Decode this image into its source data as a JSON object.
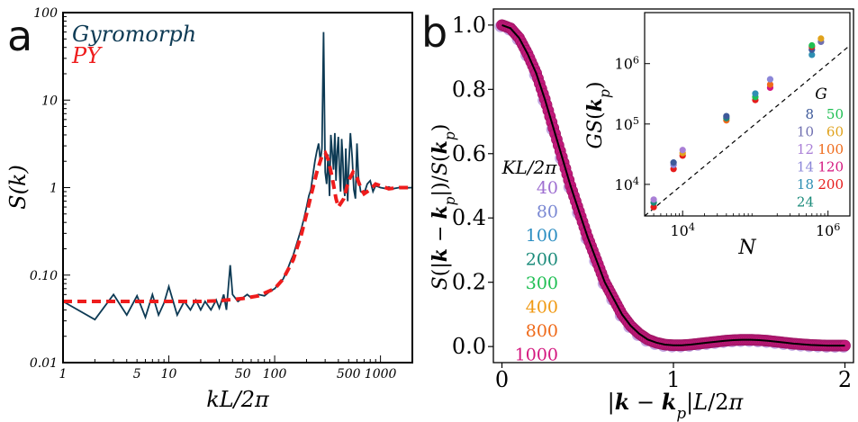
{
  "chart_data": [
    {
      "panel": "a",
      "type": "line",
      "xscale": "log",
      "yscale": "log",
      "xlim": [
        1,
        2000
      ],
      "ylim": [
        0.01,
        100
      ],
      "xlabel": "kL/2π",
      "ylabel": "S(k)",
      "xticks": [
        1,
        5,
        10,
        50,
        100,
        500,
        1000
      ],
      "xtick_labels": [
        "1",
        "5",
        "10",
        "50",
        "100",
        "500",
        "1000"
      ],
      "yticks": [
        0.01,
        0.1,
        1,
        10,
        100
      ],
      "ytick_labels": [
        "0.01",
        "0.10",
        "1",
        "10",
        "100"
      ],
      "legend_position": "top-left",
      "series": [
        {
          "name": "Gyromorph",
          "color": "#0d3a54",
          "style": "solid",
          "x": [
            1,
            2,
            3,
            4,
            5,
            6,
            7,
            8,
            9,
            10,
            12,
            14,
            16,
            18,
            20,
            22,
            25,
            28,
            30,
            33,
            35,
            38,
            40,
            45,
            50,
            55,
            60,
            70,
            80,
            90,
            100,
            110,
            120,
            130,
            140,
            150,
            160,
            170,
            180,
            190,
            200,
            210,
            220,
            230,
            240,
            250,
            260,
            270,
            280,
            290,
            300,
            310,
            320,
            330,
            340,
            350,
            360,
            370,
            380,
            390,
            400,
            410,
            420,
            430,
            440,
            450,
            460,
            470,
            480,
            490,
            500,
            520,
            540,
            560,
            580,
            600,
            620,
            650,
            700,
            750,
            800,
            850,
            900,
            1000,
            1100,
            1200,
            1300,
            1500,
            1700,
            2000
          ],
          "y": [
            0.05,
            0.031,
            0.06,
            0.035,
            0.058,
            0.033,
            0.06,
            0.035,
            0.048,
            0.074,
            0.035,
            0.05,
            0.04,
            0.052,
            0.04,
            0.05,
            0.04,
            0.052,
            0.042,
            0.06,
            0.04,
            0.13,
            0.06,
            0.05,
            0.055,
            0.06,
            0.055,
            0.06,
            0.058,
            0.065,
            0.07,
            0.08,
            0.09,
            0.11,
            0.14,
            0.17,
            0.22,
            0.28,
            0.35,
            0.45,
            0.6,
            0.8,
            0.95,
            1.4,
            2.0,
            2.6,
            3.2,
            2.0,
            2.8,
            60,
            1.5,
            1.1,
            2.4,
            0.8,
            4.0,
            2.5,
            1.6,
            4.2,
            1.2,
            2.6,
            3.8,
            1.5,
            0.9,
            3.6,
            2.2,
            1.0,
            0.8,
            2.8,
            1.3,
            0.7,
            1.6,
            4.2,
            2.2,
            0.95,
            0.75,
            3.2,
            1.3,
            0.9,
            0.85,
            1.1,
            1.2,
            0.9,
            1.05,
            1.0,
            0.98,
            1.02,
            0.97,
            1.0,
            0.99,
            1.0
          ]
        },
        {
          "name": "PY",
          "color": "#ee1c1c",
          "style": "dashed",
          "x": [
            1,
            2,
            3,
            5,
            10,
            20,
            30,
            50,
            70,
            100,
            120,
            150,
            180,
            200,
            220,
            250,
            280,
            300,
            320,
            350,
            380,
            400,
            450,
            500,
            550,
            600,
            650,
            700,
            800,
            900,
            1000,
            1200,
            1500,
            2000
          ],
          "y": [
            0.05,
            0.05,
            0.05,
            0.05,
            0.05,
            0.05,
            0.051,
            0.054,
            0.058,
            0.07,
            0.09,
            0.15,
            0.3,
            0.5,
            0.8,
            1.5,
            2.3,
            2.5,
            2.1,
            1.3,
            0.75,
            0.6,
            0.75,
            1.2,
            1.5,
            1.3,
            1.0,
            0.85,
            0.95,
            1.1,
            1.05,
            0.97,
            1.0,
            1.0
          ]
        }
      ]
    },
    {
      "panel": "b",
      "type": "scatter",
      "xlim": [
        -0.05,
        2.05
      ],
      "ylim": [
        -0.05,
        1.05
      ],
      "xlabel": "|k − k_p|L/2π",
      "ylabel": "S(|k − k_p|)/S(k_p)",
      "xticks": [
        0,
        1,
        2
      ],
      "xtick_labels": [
        "0",
        "1",
        "2"
      ],
      "yticks": [
        0.0,
        0.2,
        0.4,
        0.6,
        0.8,
        1.0
      ],
      "ytick_labels": [
        "0.0",
        "0.2",
        "0.4",
        "0.6",
        "0.8",
        "1.0"
      ],
      "legend_title": "KL/2π",
      "legend_position": "center-left",
      "legend": [
        {
          "label": "40",
          "color": "#9e6fd1"
        },
        {
          "label": "80",
          "color": "#7a88d3"
        },
        {
          "label": "100",
          "color": "#2c8ec2"
        },
        {
          "label": "200",
          "color": "#1a8b7a"
        },
        {
          "label": "300",
          "color": "#1fbf53"
        },
        {
          "label": "400",
          "color": "#f09a14"
        },
        {
          "label": "800",
          "color": "#ef6a1a"
        },
        {
          "label": "1000",
          "color": "#d4177f"
        }
      ],
      "curve_x": [
        0,
        0.05,
        0.1,
        0.15,
        0.2,
        0.25,
        0.3,
        0.35,
        0.4,
        0.45,
        0.5,
        0.55,
        0.6,
        0.65,
        0.7,
        0.75,
        0.8,
        0.85,
        0.9,
        0.95,
        1.0,
        1.05,
        1.1,
        1.15,
        1.2,
        1.25,
        1.3,
        1.35,
        1.4,
        1.45,
        1.5,
        1.55,
        1.6,
        1.65,
        1.7,
        1.75,
        1.8,
        1.85,
        1.9,
        1.95,
        2.0
      ],
      "curve_y": [
        1.0,
        0.99,
        0.96,
        0.91,
        0.85,
        0.77,
        0.68,
        0.59,
        0.5,
        0.42,
        0.34,
        0.27,
        0.2,
        0.15,
        0.1,
        0.065,
        0.04,
        0.022,
        0.012,
        0.006,
        0.004,
        0.004,
        0.006,
        0.009,
        0.012,
        0.015,
        0.018,
        0.02,
        0.021,
        0.021,
        0.02,
        0.018,
        0.015,
        0.012,
        0.009,
        0.007,
        0.005,
        0.004,
        0.003,
        0.003,
        0.003
      ]
    },
    {
      "panel": "b-inset",
      "type": "scatter",
      "xscale": "log",
      "yscale": "log",
      "xlim": [
        3000,
        2000000
      ],
      "ylim": [
        3000,
        7000000
      ],
      "xlabel": "N",
      "ylabel": "GS(k_p)",
      "xticks": [
        10000,
        1000000
      ],
      "xtick_labels": [
        "10^4",
        "10^6"
      ],
      "yticks": [
        10000,
        100000,
        1000000
      ],
      "ytick_labels": [
        "10^4",
        "10^5",
        "10^6"
      ],
      "reference_line": "y = x (dashed black)",
      "legend_title": "G",
      "legend_position": "right",
      "legend": [
        {
          "label": "8",
          "color": "#3e5a9a"
        },
        {
          "label": "10",
          "color": "#6f6fb0"
        },
        {
          "label": "12",
          "color": "#a97fd6"
        },
        {
          "label": "14",
          "color": "#8b86d8"
        },
        {
          "label": "18",
          "color": "#2f8fb3"
        },
        {
          "label": "24",
          "color": "#1a8b7a"
        },
        {
          "label": "50",
          "color": "#1fbf53"
        },
        {
          "label": "60",
          "color": "#e0a21c"
        },
        {
          "label": "100",
          "color": "#ef6a1a"
        },
        {
          "label": "120",
          "color": "#d4177f"
        },
        {
          "label": "200",
          "color": "#e61b1b"
        }
      ],
      "points": [
        {
          "N": 4000,
          "GS": 4200,
          "series": "200"
        },
        {
          "N": 4000,
          "GS": 5000,
          "series": "24"
        },
        {
          "N": 4000,
          "GS": 5600,
          "series": "12"
        },
        {
          "N": 7500,
          "GS": 18000,
          "series": "200"
        },
        {
          "N": 7500,
          "GS": 21000,
          "series": "14"
        },
        {
          "N": 7500,
          "GS": 23000,
          "series": "8"
        },
        {
          "N": 10000,
          "GS": 30000,
          "series": "200"
        },
        {
          "N": 10000,
          "GS": 33000,
          "series": "60"
        },
        {
          "N": 10000,
          "GS": 37000,
          "series": "12"
        },
        {
          "N": 40000,
          "GS": 115000,
          "series": "100"
        },
        {
          "N": 40000,
          "GS": 125000,
          "series": "24"
        },
        {
          "N": 40000,
          "GS": 135000,
          "series": "8"
        },
        {
          "N": 100000,
          "GS": 250000,
          "series": "200"
        },
        {
          "N": 100000,
          "GS": 280000,
          "series": "50"
        },
        {
          "N": 100000,
          "GS": 320000,
          "series": "18"
        },
        {
          "N": 160000,
          "GS": 400000,
          "series": "120"
        },
        {
          "N": 160000,
          "GS": 450000,
          "series": "100"
        },
        {
          "N": 160000,
          "GS": 550000,
          "series": "14"
        },
        {
          "N": 600000,
          "GS": 1400000,
          "series": "18"
        },
        {
          "N": 600000,
          "GS": 1700000,
          "series": "8"
        },
        {
          "N": 600000,
          "GS": 1900000,
          "series": "200"
        },
        {
          "N": 600000,
          "GS": 2000000,
          "series": "50"
        },
        {
          "N": 800000,
          "GS": 2300000,
          "series": "10"
        },
        {
          "N": 800000,
          "GS": 2600000,
          "series": "60"
        }
      ]
    }
  ],
  "panel_labels": {
    "a": "a",
    "b": "b"
  },
  "legend_a": {
    "gyromorph": "Gyromorph",
    "py": "PY"
  },
  "legend_b": {
    "title": "KL/2π"
  },
  "legend_inset": {
    "title": "G"
  },
  "colors": {
    "gyromorph": "#0d3a54",
    "py": "#ee1c1c",
    "curve": "#000000",
    "marker": "#c2187a"
  }
}
